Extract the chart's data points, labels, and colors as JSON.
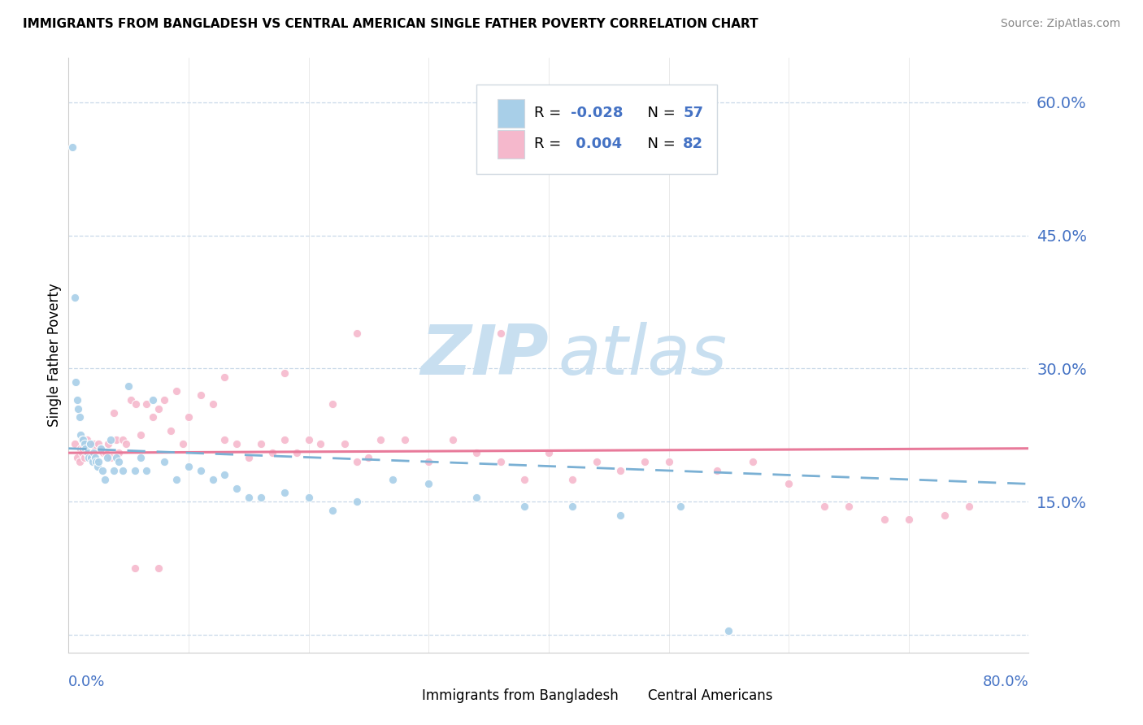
{
  "title": "IMMIGRANTS FROM BANGLADESH VS CENTRAL AMERICAN SINGLE FATHER POVERTY CORRELATION CHART",
  "source": "Source: ZipAtlas.com",
  "ylabel": "Single Father Poverty",
  "ytick_vals": [
    0.0,
    0.15,
    0.3,
    0.45,
    0.6
  ],
  "ytick_labels": [
    "",
    "15.0%",
    "30.0%",
    "45.0%",
    "60.0%"
  ],
  "color_blue": "#a8cfe8",
  "color_pink": "#f5b8cc",
  "color_line_blue": "#7ab0d4",
  "color_line_pink": "#e87a9a",
  "color_axis": "#4472C4",
  "watermark_color": "#c8dff0",
  "legend_box_color": "#f0f4f8",
  "legend_box_edge": "#d0d8e0",
  "grid_color": "#c8d8e8",
  "spine_color": "#cccccc",
  "xlim": [
    0.0,
    0.8
  ],
  "ylim": [
    -0.02,
    0.65
  ],
  "blue_x": [
    0.003,
    0.005,
    0.006,
    0.007,
    0.008,
    0.009,
    0.01,
    0.011,
    0.012,
    0.013,
    0.014,
    0.015,
    0.016,
    0.017,
    0.018,
    0.019,
    0.02,
    0.021,
    0.022,
    0.023,
    0.024,
    0.025,
    0.027,
    0.028,
    0.03,
    0.032,
    0.035,
    0.038,
    0.04,
    0.042,
    0.045,
    0.05,
    0.055,
    0.06,
    0.065,
    0.07,
    0.08,
    0.09,
    0.1,
    0.11,
    0.12,
    0.13,
    0.14,
    0.15,
    0.16,
    0.18,
    0.2,
    0.22,
    0.24,
    0.27,
    0.3,
    0.34,
    0.38,
    0.42,
    0.46,
    0.51,
    0.55
  ],
  "blue_y": [
    0.55,
    0.38,
    0.285,
    0.265,
    0.255,
    0.245,
    0.225,
    0.22,
    0.22,
    0.215,
    0.21,
    0.205,
    0.205,
    0.2,
    0.215,
    0.2,
    0.195,
    0.205,
    0.2,
    0.195,
    0.19,
    0.195,
    0.21,
    0.185,
    0.175,
    0.2,
    0.22,
    0.185,
    0.2,
    0.195,
    0.185,
    0.28,
    0.185,
    0.2,
    0.185,
    0.265,
    0.195,
    0.175,
    0.19,
    0.185,
    0.175,
    0.18,
    0.165,
    0.155,
    0.155,
    0.16,
    0.155,
    0.14,
    0.15,
    0.175,
    0.17,
    0.155,
    0.145,
    0.145,
    0.135,
    0.145,
    0.005
  ],
  "pink_x": [
    0.005,
    0.007,
    0.009,
    0.01,
    0.011,
    0.012,
    0.013,
    0.014,
    0.015,
    0.016,
    0.017,
    0.018,
    0.019,
    0.02,
    0.021,
    0.022,
    0.023,
    0.025,
    0.027,
    0.029,
    0.031,
    0.033,
    0.035,
    0.038,
    0.04,
    0.042,
    0.045,
    0.048,
    0.052,
    0.056,
    0.06,
    0.065,
    0.07,
    0.075,
    0.08,
    0.085,
    0.09,
    0.095,
    0.1,
    0.11,
    0.12,
    0.13,
    0.14,
    0.15,
    0.16,
    0.17,
    0.18,
    0.19,
    0.2,
    0.21,
    0.22,
    0.23,
    0.24,
    0.25,
    0.26,
    0.28,
    0.3,
    0.32,
    0.34,
    0.36,
    0.38,
    0.4,
    0.42,
    0.44,
    0.46,
    0.48,
    0.5,
    0.54,
    0.57,
    0.6,
    0.63,
    0.65,
    0.68,
    0.7,
    0.73,
    0.75,
    0.36,
    0.24,
    0.18,
    0.13,
    0.075,
    0.055
  ],
  "pink_y": [
    0.215,
    0.2,
    0.195,
    0.21,
    0.205,
    0.21,
    0.2,
    0.215,
    0.22,
    0.205,
    0.21,
    0.2,
    0.205,
    0.215,
    0.215,
    0.21,
    0.195,
    0.215,
    0.21,
    0.205,
    0.205,
    0.215,
    0.2,
    0.25,
    0.22,
    0.205,
    0.22,
    0.215,
    0.265,
    0.26,
    0.225,
    0.26,
    0.245,
    0.255,
    0.265,
    0.23,
    0.275,
    0.215,
    0.245,
    0.27,
    0.26,
    0.22,
    0.215,
    0.2,
    0.215,
    0.205,
    0.22,
    0.205,
    0.22,
    0.215,
    0.26,
    0.215,
    0.195,
    0.2,
    0.22,
    0.22,
    0.195,
    0.22,
    0.205,
    0.195,
    0.175,
    0.205,
    0.175,
    0.195,
    0.185,
    0.195,
    0.195,
    0.185,
    0.195,
    0.17,
    0.145,
    0.145,
    0.13,
    0.13,
    0.135,
    0.145,
    0.34,
    0.34,
    0.295,
    0.29,
    0.075,
    0.075
  ]
}
